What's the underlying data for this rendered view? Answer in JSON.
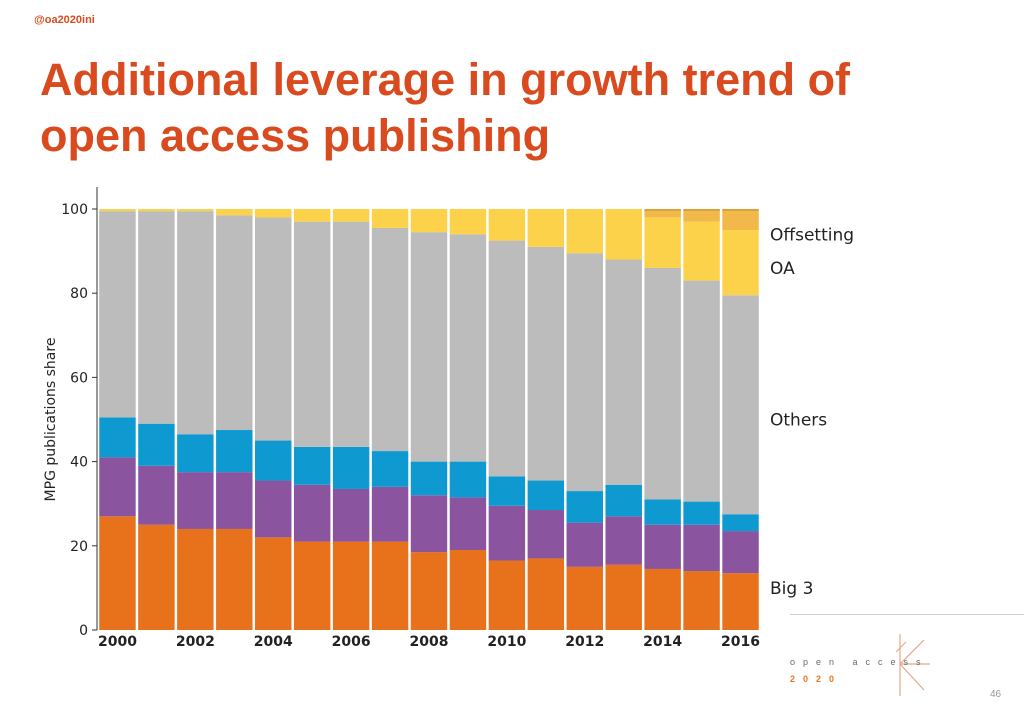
{
  "slide": {
    "handle": "@oa2020ini",
    "title": "Additional leverage in growth trend of open access publishing",
    "page_number": "46"
  },
  "logo": {
    "word1": "open access",
    "word2": "2020"
  },
  "chart_data": {
    "type": "bar",
    "stacked": true,
    "title": "",
    "xlabel": "",
    "ylabel": "MPG publications share",
    "ylim": [
      0,
      100
    ],
    "yticks": [
      0,
      20,
      40,
      60,
      80,
      100
    ],
    "categories": [
      "2000",
      "2001",
      "2002",
      "2003",
      "2004",
      "2005",
      "2006",
      "2007",
      "2008",
      "2009",
      "2010",
      "2011",
      "2012",
      "2013",
      "2014",
      "2015",
      "2016"
    ],
    "x_tick_labels": [
      "2000",
      "2002",
      "2004",
      "2006",
      "2008",
      "2010",
      "2012",
      "2014",
      "2016"
    ],
    "grid": false,
    "legend_placement": "right",
    "series": [
      {
        "name": "Big 3",
        "color": "#e8711c",
        "values": [
          27,
          25,
          24,
          24,
          22,
          21,
          21,
          21,
          18.5,
          19,
          16.5,
          17,
          15,
          15.5,
          14.5,
          14,
          13.5
        ]
      },
      {
        "color": "#8a559e",
        "values": [
          14,
          14,
          13.5,
          13.5,
          13.5,
          13.5,
          12.5,
          13,
          13.5,
          12.5,
          13,
          11.5,
          10.5,
          11.5,
          10.5,
          11,
          10
        ]
      },
      {
        "color": "#0e9ad0",
        "values": [
          9.5,
          10,
          9,
          10,
          9.5,
          9,
          10,
          8.5,
          8,
          8.5,
          7,
          7,
          7.5,
          7.5,
          6,
          5.5,
          4
        ]
      },
      {
        "name": "Others",
        "color": "#bcbcbc",
        "values": [
          49,
          50.5,
          53,
          51,
          53,
          53.5,
          53.5,
          53,
          54.5,
          54,
          56,
          55.5,
          56.5,
          53.5,
          55,
          52.5,
          52
        ]
      },
      {
        "name": "OA",
        "color": "#fdd24b",
        "values": [
          0.5,
          0.5,
          0.5,
          1.5,
          2,
          3,
          3,
          4.5,
          5.5,
          6,
          7.5,
          9,
          10.5,
          12,
          12,
          14,
          15.5
        ]
      },
      {
        "name": "Offsetting",
        "color": "#f2b84a",
        "values": [
          0,
          0,
          0,
          0,
          0,
          0,
          0,
          0,
          0,
          0,
          0,
          0,
          0,
          0,
          2,
          3,
          5
        ]
      }
    ],
    "legend_entries": [
      {
        "label": "Offsetting",
        "y": 94
      },
      {
        "label": "OA",
        "y": 86
      },
      {
        "label": "Others",
        "y": 50
      },
      {
        "label": "Big 3",
        "y": 10
      }
    ]
  }
}
